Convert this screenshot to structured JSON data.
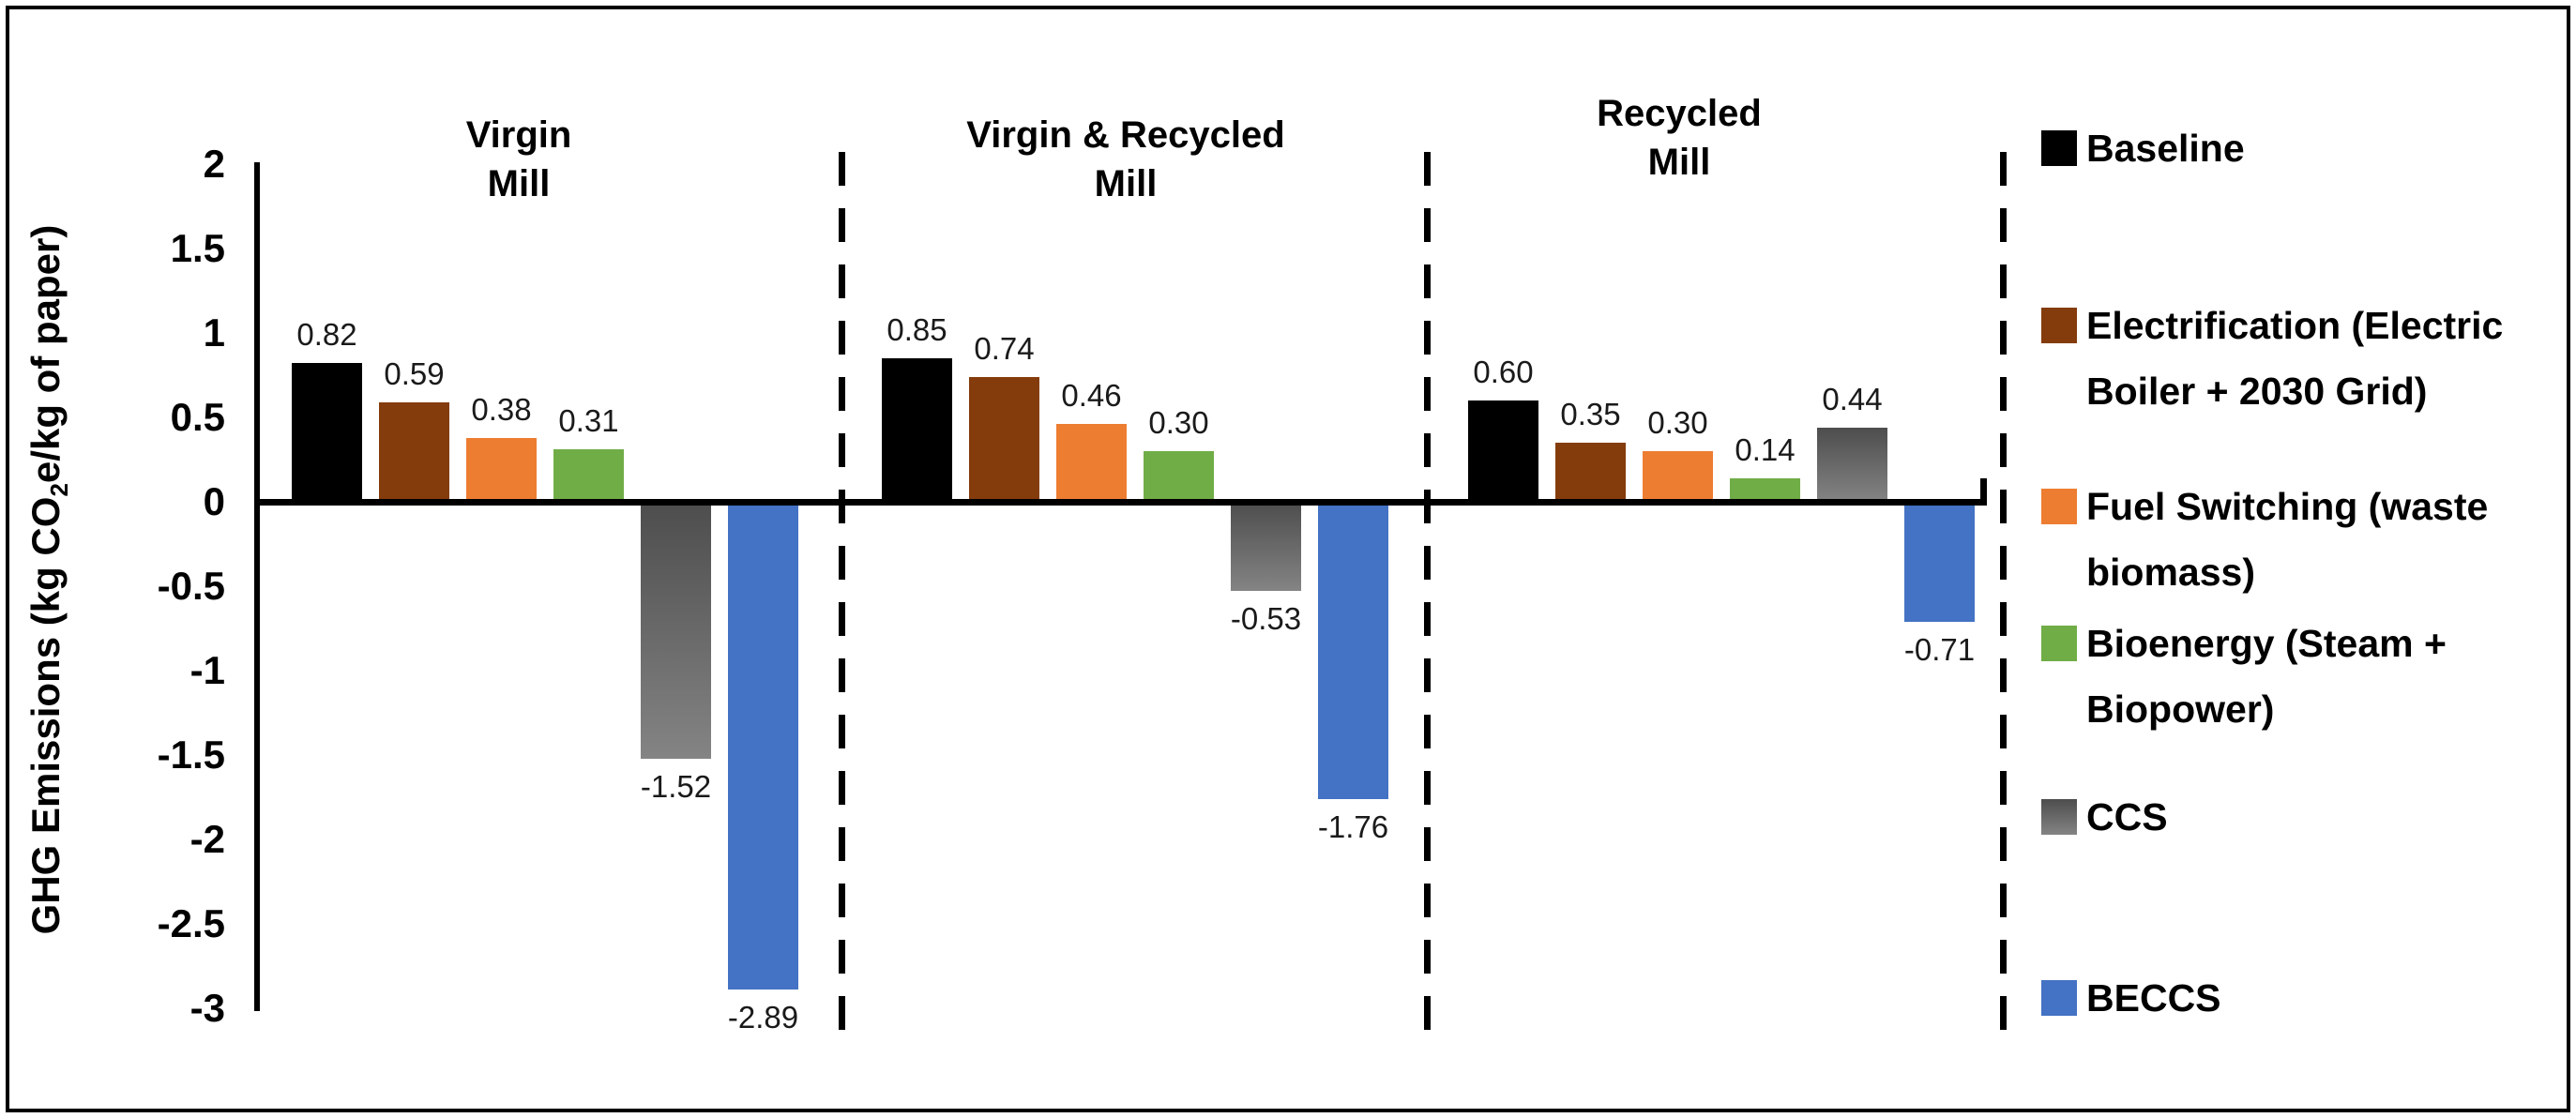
{
  "chart_data": {
    "type": "bar",
    "title": "",
    "ylabel": "GHG Emissions (kg CO2e/kg of paper)",
    "ylabel_parts": {
      "prefix": "GHG Emissions (kg CO",
      "sub": "2",
      "suffix": "e/kg of paper)"
    },
    "ylim": [
      -3,
      2
    ],
    "ytick_labels": [
      "2",
      "1.5",
      "1",
      "0.5",
      "0",
      "-0.5",
      "-1",
      "-1.5",
      "-2",
      "-2.5",
      "-3"
    ],
    "ytick_values": [
      2,
      1.5,
      1,
      0.5,
      0,
      -0.5,
      -1,
      -1.5,
      -2,
      -2.5,
      -3
    ],
    "grid": false,
    "legend_position": "right",
    "value_label_decimals": 2,
    "categories": [
      "Virgin Mill",
      "Virgin & Recycled Mill",
      "Recycled Mill"
    ],
    "groups": [
      {
        "title_lines": [
          "Virgin",
          "Mill"
        ],
        "values": [
          0.82,
          0.59,
          0.38,
          0.31,
          -1.52,
          -2.89
        ]
      },
      {
        "title_lines": [
          "Virgin & Recycled",
          "Mill"
        ],
        "values": [
          0.85,
          0.74,
          0.46,
          0.3,
          -0.53,
          -1.76
        ]
      },
      {
        "title_lines": [
          "Recycled",
          "Mill"
        ],
        "values": [
          0.6,
          0.35,
          0.3,
          0.14,
          0.44,
          -0.71
        ]
      }
    ],
    "series": [
      {
        "name": "Baseline",
        "legend_lines": [
          "Baseline"
        ],
        "color": "#000000"
      },
      {
        "name": "Electrification (Electric Boiler + 2030 Grid)",
        "legend_lines": [
          "Electrification (Electric",
          "Boiler + 2030 Grid)"
        ],
        "color": "#843C0C"
      },
      {
        "name": "Fuel Switching (waste biomass)",
        "legend_lines": [
          "Fuel Switching (waste",
          "biomass)"
        ],
        "color": "#ED7D31"
      },
      {
        "name": "Bioenergy (Steam + Biopower)",
        "legend_lines": [
          "Bioenergy (Steam +",
          "Biopower)"
        ],
        "color": "#70AD47"
      },
      {
        "name": "CCS",
        "legend_lines": [
          "CCS"
        ],
        "color": "#595959",
        "gradient": {
          "from": "#4d4d4d",
          "to": "#848484"
        }
      },
      {
        "name": "BECCS",
        "legend_lines": [
          "BECCS"
        ],
        "color": "#4472C4"
      }
    ]
  }
}
